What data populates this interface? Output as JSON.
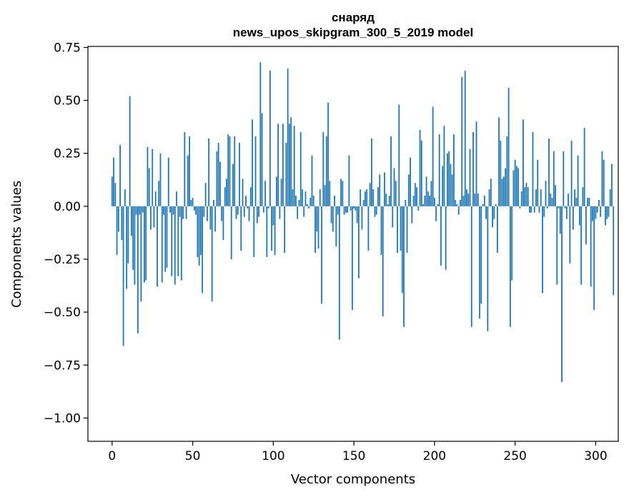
{
  "chart_data": {
    "type": "bar",
    "title_line1": "снаряд",
    "title_line2": "news_upos_skipgram_300_5_2019 model",
    "xlabel": "Vector components",
    "ylabel": "Components values",
    "xlim": [
      -15,
      314
    ],
    "ylim": [
      -1.11,
      0.755
    ],
    "xticks": [
      0,
      50,
      100,
      150,
      200,
      250,
      300
    ],
    "xtick_labels": [
      "0",
      "50",
      "100",
      "150",
      "200",
      "250",
      "300"
    ],
    "yticks": [
      0.75,
      0.5,
      0.25,
      0.0,
      -0.25,
      -0.5,
      -0.75,
      -1.0
    ],
    "ytick_labels": [
      "0.75",
      "0.50",
      "0.25",
      "0.00",
      "−0.25",
      "−0.50",
      "−0.75",
      "−1.00"
    ],
    "bar_color": "#1f77b4",
    "values": [
      0.14,
      0.23,
      0.11,
      -0.23,
      -0.12,
      0.29,
      -0.16,
      -0.66,
      0.08,
      -0.39,
      -0.27,
      0.52,
      -0.14,
      -0.3,
      -0.37,
      -0.04,
      -0.6,
      -0.04,
      -0.45,
      -0.03,
      -0.36,
      -0.35,
      0.28,
      0.18,
      -0.11,
      0.27,
      -0.1,
      0.07,
      -0.38,
      0.12,
      0.25,
      -0.36,
      -0.04,
      -0.31,
      -0.29,
      0.23,
      -0.03,
      -0.33,
      -0.04,
      -0.37,
      0.07,
      -0.33,
      -0.05,
      -0.35,
      -0.06,
      0.35,
      -0.06,
      0.24,
      0.33,
      0.03,
      0.04,
      -0.02,
      -0.04,
      -0.24,
      -0.28,
      -0.23,
      -0.41,
      -0.05,
      0.11,
      -0.07,
      0.32,
      -0.11,
      -0.45,
      0.03,
      -0.12,
      0.26,
      0.3,
      0.21,
      -0.07,
      -0.16,
      0.09,
      0.13,
      0.34,
      0.33,
      -0.25,
      0.2,
      0.33,
      -0.06,
      -0.04,
      0.3,
      -0.21,
      0.13,
      -0.05,
      0.05,
      -0.01,
      -0.07,
      0.09,
      0.41,
      -0.24,
      0.33,
      -0.08,
      -0.05,
      0.68,
      0.44,
      -0.03,
      0.12,
      -0.24,
      -0.01,
      0.64,
      -0.21,
      -0.09,
      -0.23,
      0.14,
      0.39,
      -0.06,
      0.13,
      0.39,
      -0.22,
      0.3,
      0.65,
      0.39,
      0.42,
      0.08,
      0.38,
      0.05,
      -0.06,
      0.03,
      0.35,
      0.08,
      -0.05,
      0.07,
      0.01,
      -0.01,
      0.04,
      0.24,
      0.05,
      -0.22,
      -0.12,
      -0.2,
      0.08,
      -0.46,
      0.35,
      0.1,
      0.33,
      0.49,
      0.12,
      -0.08,
      -0.12,
      0.05,
      -0.19,
      -0.04,
      -0.63,
      0.13,
      0.12,
      -0.04,
      -0.03,
      -0.03,
      0.24,
      -0.02,
      -0.49,
      -0.01,
      -0.02,
      -0.08,
      -0.34,
      0.08,
      -0.11,
      0.03,
      0.07,
      0.08,
      -0.21,
      0.11,
      0.32,
      0.08,
      -0.05,
      -0.04,
      0.09,
      0.15,
      -0.23,
      -0.52,
      0.16,
      0.06,
      0.01,
      0.05,
      0.33,
      -0.1,
      0.18,
      0.12,
      -0.22,
      0.48,
      -0.21,
      -0.41,
      -0.57,
      0.03,
      -0.22,
      0.15,
      0.23,
      -0.08,
      0.05,
      0.11,
      0.09,
      -0.02,
      0.36,
      0.31,
      0.01,
      0.05,
      0.14,
      0.07,
      0.05,
      0.12,
      0.47,
      0.04,
      -0.07,
      0.01,
      0.34,
      -0.28,
      0.19,
      0.38,
      -0.3,
      0.25,
      0.26,
      0.2,
      0.15,
      0.34,
      0.03,
      0.01,
      -0.04,
      0.03,
      0.61,
      0.05,
      0.64,
      0.08,
      0.06,
      0.27,
      -0.57,
      0.35,
      0.06,
      0.4,
      0.06,
      -0.53,
      -0.46,
      0.01,
      0.05,
      -0.06,
      -0.59,
      0.08,
      0.13,
      -0.1,
      -0.06,
      0.01,
      -0.22,
      0.42,
      0.31,
      0.13,
      0.14,
      0.18,
      0.33,
      0.56,
      -0.57,
      -0.35,
      0.17,
      0.22,
      0.19,
      0.18,
      -0.01,
      0.07,
      0.41,
      0.09,
      0.11,
      0.09,
      -0.03,
      -0.03,
      0.35,
      -0.03,
      0.08,
      0.22,
      -0.03,
      0.08,
      -0.41,
      -0.05,
      0.12,
      -0.01,
      0.32,
      0.06,
      0.04,
      0.26,
      0.1,
      -0.37,
      -0.01,
      -0.13,
      -0.83,
      0.26,
      -0.01,
      -0.06,
      0.06,
      -0.27,
      0.31,
      -0.11,
      0.08,
      0.04,
      0.24,
      -0.09,
      -0.37,
      0.09,
      0.37,
      -0.18,
      0.04,
      0.04,
      -0.38,
      -0.07,
      -0.49,
      -0.06,
      -0.03,
      0.03,
      -0.05,
      0.26,
      0.22,
      -0.09,
      -0.06,
      -0.05,
      0.08,
      0.2,
      -0.42
    ]
  }
}
